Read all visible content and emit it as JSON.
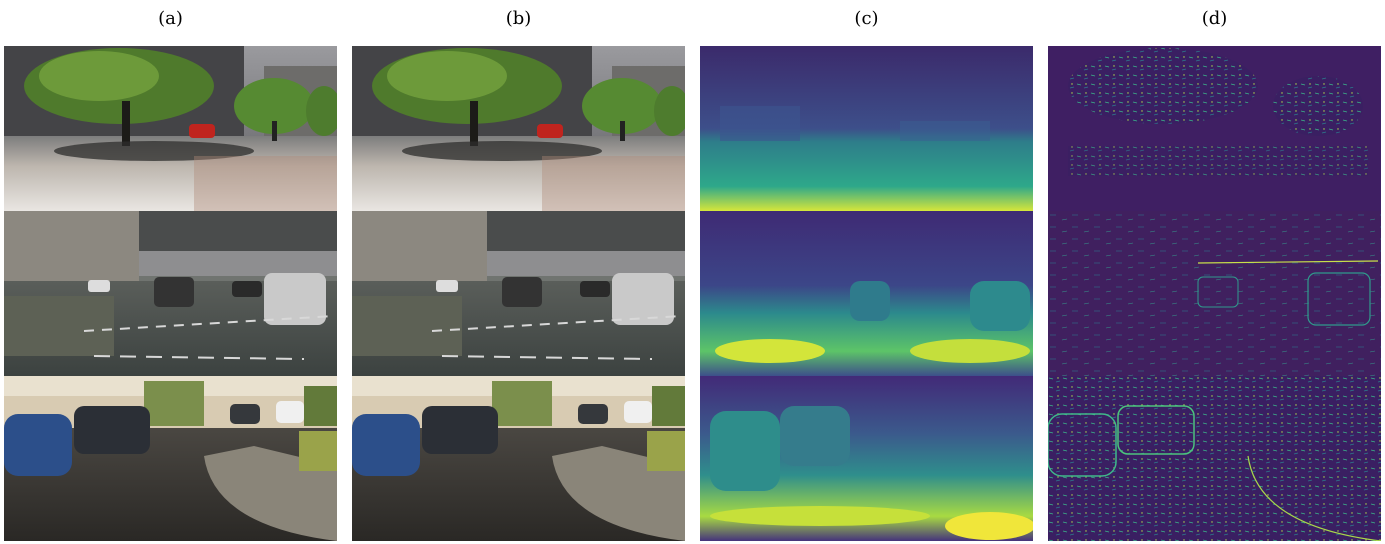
{
  "figure": {
    "columns": [
      {
        "label": "(a)"
      },
      {
        "label": "(b)"
      },
      {
        "label": "(c)"
      },
      {
        "label": "(d)"
      }
    ]
  }
}
